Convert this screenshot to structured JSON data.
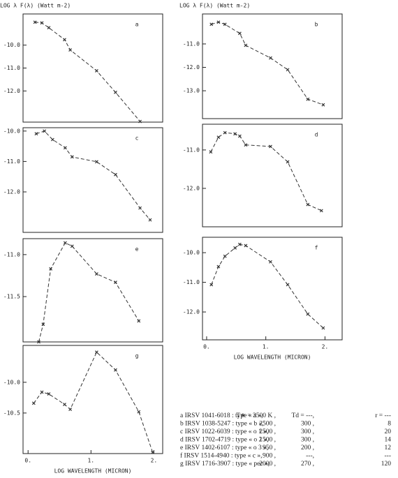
{
  "chart_data": [
    {
      "type": "line",
      "title": "a",
      "ylabel": "LOG λ F(λ) (Watt m-2)",
      "xlim": [
        -0.08,
        2.14
      ],
      "ylim": [
        -13.36,
        -8.64
      ],
      "yticks": [
        {
          "value": -10,
          "label": "-10.0"
        },
        {
          "value": -11,
          "label": "-11.0"
        },
        {
          "value": -12,
          "label": "-12.0"
        }
      ],
      "x": [
        0.11,
        0.22,
        0.33,
        0.58,
        0.67,
        1.09,
        1.39,
        1.78
      ],
      "series": [
        {
          "color": "#333",
          "values": [
            -9.0,
            -9.03,
            -9.24,
            -9.76,
            -10.21,
            -11.12,
            -12.06,
            -13.33
          ]
        }
      ]
    },
    {
      "type": "line",
      "title": "b",
      "ylabel": "LOG λ F(λ) (Watt m-2)",
      "xlim": [
        -0.07,
        2.29
      ],
      "ylim": [
        -14.19,
        -9.72
      ],
      "yticks": [
        {
          "value": -11,
          "label": "-11.0"
        },
        {
          "value": -12,
          "label": "-12.0"
        },
        {
          "value": -13,
          "label": "-13.0"
        }
      ],
      "x": [
        0.08,
        0.2,
        0.31,
        0.56,
        0.66,
        1.08,
        1.37,
        1.71,
        1.97
      ],
      "series": [
        {
          "color": "#333",
          "values": [
            -10.16,
            -10.07,
            -10.16,
            -10.55,
            -11.06,
            -11.6,
            -12.1,
            -13.36,
            -13.6
          ]
        }
      ]
    },
    {
      "type": "line",
      "title": "c",
      "xlim": [
        -0.08,
        2.14
      ],
      "ylim": [
        -13.33,
        -9.89
      ],
      "yticks": [
        {
          "value": -10,
          "label": "-10.0"
        },
        {
          "value": -11,
          "label": "-11.0"
        },
        {
          "value": -12,
          "label": "-12.0"
        }
      ],
      "x": [
        0.13,
        0.26,
        0.39,
        0.59,
        0.7,
        1.09,
        1.39,
        1.78,
        1.94
      ],
      "series": [
        {
          "color": "#333",
          "values": [
            -10.09,
            -10.0,
            -10.28,
            -10.55,
            -10.85,
            -11.01,
            -11.43,
            -12.53,
            -12.92
          ]
        }
      ]
    },
    {
      "type": "line",
      "title": "d",
      "xlim": [
        -0.07,
        2.29
      ],
      "ylim": [
        -13.0,
        -10.33
      ],
      "yticks": [
        {
          "value": -11,
          "label": "-11.0"
        },
        {
          "value": -12,
          "label": "-12.0"
        }
      ],
      "x": [
        0.07,
        0.2,
        0.31,
        0.48,
        0.56,
        0.66,
        1.08,
        1.37,
        1.71,
        1.94
      ],
      "series": [
        {
          "color": "#333",
          "values": [
            -11.05,
            -10.67,
            -10.55,
            -10.58,
            -10.64,
            -10.87,
            -10.91,
            -11.31,
            -12.42,
            -12.58
          ]
        }
      ]
    },
    {
      "type": "line",
      "title": "e",
      "xlim": [
        -0.08,
        2.14
      ],
      "ylim": [
        -12.04,
        -10.81
      ],
      "yticks": [
        {
          "value": -11,
          "label": "-11.0"
        },
        {
          "value": -11.5,
          "label": "-11.5"
        }
      ],
      "x": [
        0.17,
        0.24,
        0.36,
        0.59,
        0.7,
        1.09,
        1.39,
        1.76
      ],
      "series": [
        {
          "color": "#333",
          "values": [
            -12.04,
            -11.83,
            -11.17,
            -10.86,
            -10.9,
            -11.23,
            -11.33,
            -11.79
          ]
        }
      ]
    },
    {
      "type": "line",
      "title": "f",
      "xlabel": "LOG WAVELENGTH (MICRON)",
      "xlim": [
        -0.07,
        2.29
      ],
      "ylim": [
        -12.94,
        -9.48
      ],
      "xticks": [
        {
          "value": 0,
          "label": "0."
        },
        {
          "value": 1,
          "label": "1."
        },
        {
          "value": 2,
          "label": "2."
        }
      ],
      "yticks": [
        {
          "value": -10,
          "label": "-10.0"
        },
        {
          "value": -11,
          "label": "-11.0"
        },
        {
          "value": -12,
          "label": "-12.0"
        }
      ],
      "x": [
        0.08,
        0.2,
        0.31,
        0.48,
        0.56,
        0.66,
        1.08,
        1.37,
        1.71,
        1.97
      ],
      "series": [
        {
          "color": "#333",
          "values": [
            -11.08,
            -10.47,
            -10.12,
            -9.84,
            -9.72,
            -9.76,
            -10.31,
            -11.08,
            -12.07,
            -12.54
          ]
        }
      ]
    },
    {
      "type": "line",
      "title": "g",
      "xlabel": "LOG WAVELENGTH (MICRON)",
      "xlim": [
        -0.08,
        2.14
      ],
      "ylim": [
        -11.16,
        -9.4
      ],
      "xticks": [
        {
          "value": 0,
          "label": "0."
        },
        {
          "value": 1,
          "label": "1."
        },
        {
          "value": 2,
          "label": "2."
        }
      ],
      "yticks": [
        {
          "value": -10,
          "label": "-10.0"
        },
        {
          "value": -10.5,
          "label": "-10.5"
        }
      ],
      "x": [
        0.09,
        0.22,
        0.33,
        0.58,
        0.67,
        1.09,
        1.39,
        1.76,
        1.98
      ],
      "series": [
        {
          "color": "#333",
          "values": [
            -10.34,
            -10.16,
            -10.19,
            -10.36,
            -10.44,
            -9.51,
            -9.8,
            -10.48,
            -11.14
          ]
        }
      ]
    }
  ],
  "table": {
    "rows": [
      [
        "a IRSV 1041-6018 : type « a »,",
        "T∗ = 3500 K ,",
        "Td = ---,",
        "r = ---"
      ],
      [
        "b IRSV 1038-5247 : type « b »,",
        "2500 ,",
        "300 ,",
        "8"
      ],
      [
        "c IRSV 1022-6039 : type « o 1 »,",
        "2500 ,",
        "300 ,",
        "20"
      ],
      [
        "d IRSV 1702-4719 : type « o 2 »,",
        "1500 ,",
        "300 ,",
        "14"
      ],
      [
        "e IRSV 1402-6107 : type « o 3 »,",
        "950 ,",
        "200 ,",
        "12"
      ],
      [
        "f IRSV 1514-4940 : type « c »,",
        "900 ,",
        "---,",
        "---"
      ],
      [
        "g IRSV 1716-3907 : type « pec »,",
        "2000 ,",
        "270 ,",
        "120"
      ]
    ]
  }
}
